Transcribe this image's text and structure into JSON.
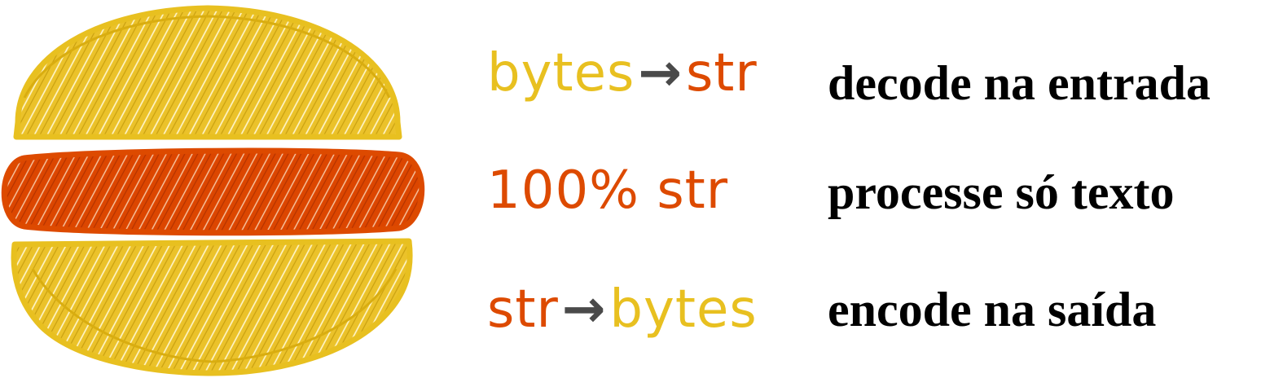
{
  "colors": {
    "yellow": "#E8C020",
    "orange": "#DD4A00",
    "arrow": "#4A4A4A",
    "caption": "#000000"
  },
  "illustration": {
    "icon": "sandwich-icon",
    "layers": [
      "top-bun",
      "filling",
      "bottom-bun"
    ]
  },
  "rows": [
    {
      "sketch": {
        "left": "bytes",
        "arrow": "→",
        "right": "str",
        "left_color": "yellow",
        "right_color": "orange"
      },
      "caption": "decode na entrada"
    },
    {
      "sketch": {
        "text": "100% str",
        "color": "orange"
      },
      "caption": "processe só texto"
    },
    {
      "sketch": {
        "left": "str",
        "arrow": "→",
        "right": "bytes",
        "left_color": "orange",
        "right_color": "yellow"
      },
      "caption": "encode na saída"
    }
  ]
}
